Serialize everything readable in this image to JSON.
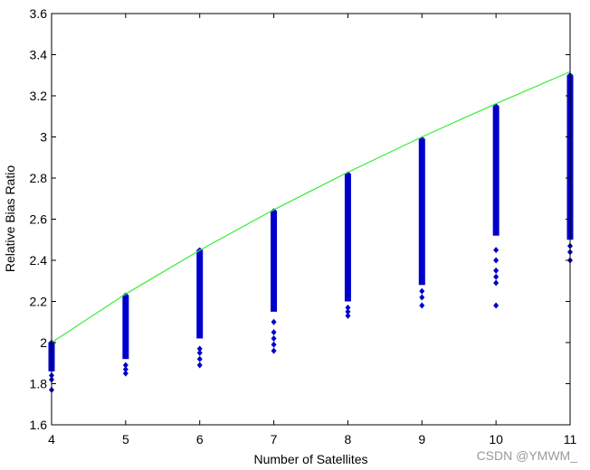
{
  "watermark": "CSDN @YMWM_",
  "chart_data": {
    "type": "scatter",
    "title": "",
    "xlabel": "Number of Satellites",
    "ylabel": "Relative Bias Ratio",
    "xlim": [
      4,
      11
    ],
    "ylim": [
      1.6,
      3.6
    ],
    "xticks": [
      "4",
      "5",
      "6",
      "7",
      "8",
      "9",
      "10",
      "11"
    ],
    "yticks": [
      "1.6",
      "1.8",
      "2",
      "2.2",
      "2.4",
      "2.6",
      "2.8",
      "3",
      "3.2",
      "3.4",
      "3.6"
    ],
    "grid": false,
    "colors": {
      "scatter": "#0000cc",
      "line": "#33ee33"
    },
    "scatter_ranges": [
      {
        "x": 4,
        "dense_min": 1.86,
        "max": 2.0,
        "outliers": [
          1.84,
          1.82,
          1.77
        ]
      },
      {
        "x": 5,
        "dense_min": 1.92,
        "max": 2.23,
        "outliers": [
          1.89,
          1.87,
          1.85
        ]
      },
      {
        "x": 6,
        "dense_min": 2.02,
        "max": 2.45,
        "outliers": [
          1.97,
          1.95,
          1.92,
          1.89
        ]
      },
      {
        "x": 7,
        "dense_min": 2.15,
        "max": 2.64,
        "outliers": [
          2.1,
          2.05,
          2.02,
          1.99,
          1.96
        ]
      },
      {
        "x": 8,
        "dense_min": 2.2,
        "max": 2.82,
        "outliers": [
          2.17,
          2.15,
          2.13
        ]
      },
      {
        "x": 9,
        "dense_min": 2.28,
        "max": 2.99,
        "outliers": [
          2.25,
          2.22,
          2.18
        ]
      },
      {
        "x": 10,
        "dense_min": 2.52,
        "max": 3.15,
        "outliers": [
          2.45,
          2.4,
          2.35,
          2.32,
          2.29,
          2.18
        ]
      },
      {
        "x": 11,
        "dense_min": 2.5,
        "max": 3.3,
        "outliers": [
          2.47,
          2.44,
          2.4
        ]
      }
    ],
    "line": {
      "x": [
        4,
        5,
        6,
        7,
        8,
        9,
        10,
        11
      ],
      "y": [
        2.0,
        2.236,
        2.449,
        2.646,
        2.828,
        3.0,
        3.162,
        3.317
      ]
    }
  }
}
